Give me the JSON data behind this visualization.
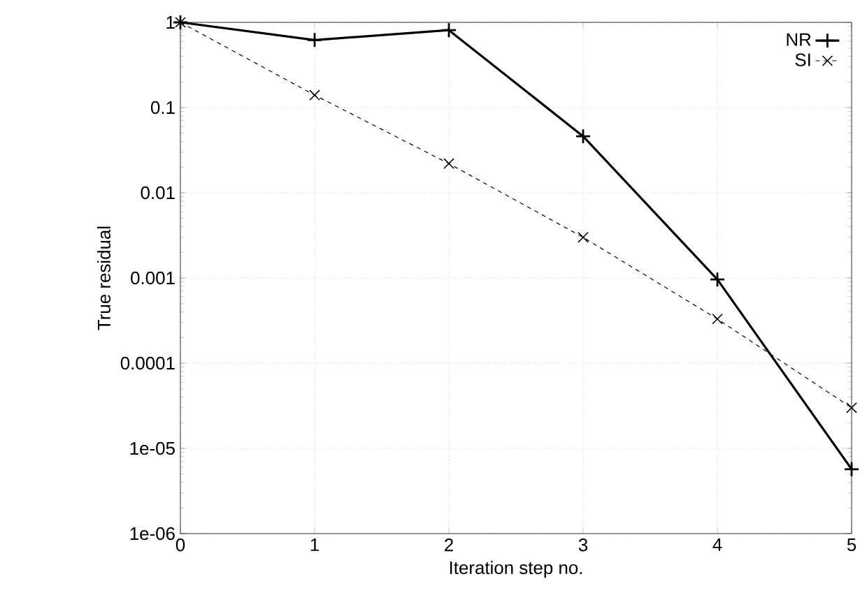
{
  "chart_data": {
    "type": "line",
    "xlabel": "Iteration step no.",
    "ylabel": "True residual",
    "log": "y",
    "grid": true,
    "legend": "top right",
    "x": [
      0,
      1,
      2,
      3,
      4,
      5
    ],
    "xlim": [
      0,
      5
    ],
    "xticks": [
      0,
      1,
      2,
      3,
      4,
      5
    ],
    "ylim": [
      1e-06,
      1
    ],
    "yticks": [
      {
        "value": 1e-06,
        "label": "1e-06"
      },
      {
        "value": 1e-05,
        "label": "1e-05"
      },
      0.0001,
      0.001,
      0.01,
      0.1,
      1
    ],
    "series": [
      {
        "name": "NR",
        "color": "#000000",
        "marker": "plus",
        "line_style": "solid",
        "values": [
          1,
          0.62,
          0.81,
          0.046,
          0.00096,
          5.7e-06
        ]
      },
      {
        "name": "SI",
        "color": "#000000",
        "marker": "x",
        "line_style": "dashed",
        "values": [
          1,
          0.14,
          0.022,
          0.003,
          0.00033,
          3e-05
        ]
      }
    ]
  }
}
